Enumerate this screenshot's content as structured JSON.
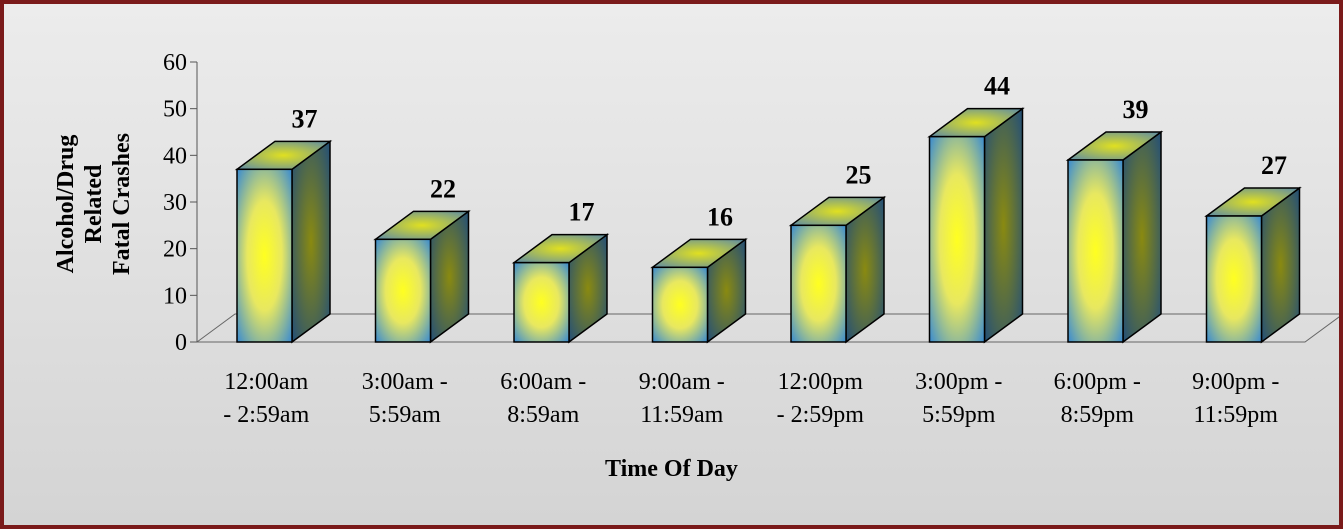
{
  "chart_data": {
    "type": "bar3d",
    "categories": [
      "12:00am\n- 2:59am",
      "3:00am -\n5:59am",
      "6:00am -\n8:59am",
      "9:00am -\n11:59am",
      "12:00pm\n- 2:59pm",
      "3:00pm -\n5:59pm",
      "6:00pm -\n8:59pm",
      "9:00pm -\n11:59pm"
    ],
    "values": [
      37,
      22,
      17,
      16,
      25,
      44,
      39,
      27
    ],
    "ylim": [
      0,
      60
    ],
    "yticks": [
      0,
      10,
      20,
      30,
      40,
      50,
      60
    ],
    "y_label": "Alcohol/Drug\nRelated\nFatal Crashes",
    "x_label": "Time Of Day",
    "color": "#3f8fd0"
  }
}
